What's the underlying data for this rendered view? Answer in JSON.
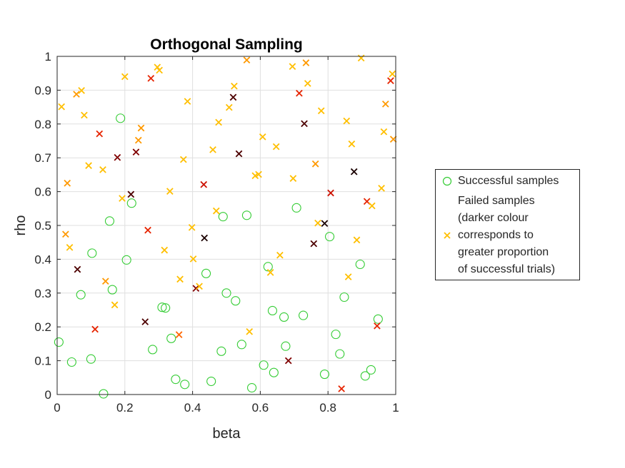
{
  "chart_data": {
    "type": "scatter",
    "title": "Orthogonal Sampling",
    "xlabel": "beta",
    "ylabel": "rho",
    "xlim": [
      0,
      1
    ],
    "ylim": [
      0,
      1
    ],
    "xticks": [
      "0",
      "0.2",
      "0.4",
      "0.6",
      "0.8",
      "1"
    ],
    "yticks": [
      "0",
      "0.1",
      "0.2",
      "0.3",
      "0.4",
      "0.5",
      "0.6",
      "0.7",
      "0.8",
      "0.9",
      "1"
    ],
    "grid": true,
    "legend_position": "right",
    "colors": {
      "success": "#33cc33",
      "fail_bright": "#ffbf00",
      "fail_orange": "#ff9900",
      "fail_red": "#e62400",
      "fail_dark": "#4d0000"
    },
    "series": [
      {
        "name": "Successful samples",
        "marker": "circle",
        "color": "#33cc33",
        "points": [
          [
            0.005,
            0.155
          ],
          [
            0.043,
            0.096
          ],
          [
            0.07,
            0.295
          ],
          [
            0.1,
            0.105
          ],
          [
            0.103,
            0.418
          ],
          [
            0.137,
            0.002
          ],
          [
            0.155,
            0.513
          ],
          [
            0.163,
            0.31
          ],
          [
            0.187,
            0.817
          ],
          [
            0.205,
            0.398
          ],
          [
            0.22,
            0.566
          ],
          [
            0.282,
            0.133
          ],
          [
            0.31,
            0.258
          ],
          [
            0.32,
            0.256
          ],
          [
            0.337,
            0.166
          ],
          [
            0.35,
            0.045
          ],
          [
            0.377,
            0.03
          ],
          [
            0.44,
            0.358
          ],
          [
            0.455,
            0.039
          ],
          [
            0.485,
            0.128
          ],
          [
            0.49,
            0.526
          ],
          [
            0.5,
            0.3
          ],
          [
            0.527,
            0.277
          ],
          [
            0.545,
            0.148
          ],
          [
            0.56,
            0.53
          ],
          [
            0.575,
            0.02
          ],
          [
            0.61,
            0.087
          ],
          [
            0.623,
            0.378
          ],
          [
            0.636,
            0.248
          ],
          [
            0.64,
            0.065
          ],
          [
            0.67,
            0.229
          ],
          [
            0.675,
            0.143
          ],
          [
            0.707,
            0.552
          ],
          [
            0.727,
            0.234
          ],
          [
            0.79,
            0.06
          ],
          [
            0.805,
            0.467
          ],
          [
            0.823,
            0.178
          ],
          [
            0.835,
            0.12
          ],
          [
            0.848,
            0.288
          ],
          [
            0.895,
            0.385
          ],
          [
            0.91,
            0.055
          ],
          [
            0.927,
            0.073
          ],
          [
            0.948,
            0.223
          ]
        ]
      },
      {
        "name": "Failed samples (darker colour corresponds to greater proportion of successful trials)",
        "marker": "x",
        "points": [
          {
            "x": 0.013,
            "y": 0.851,
            "c": "#ffbf00"
          },
          {
            "x": 0.025,
            "y": 0.474,
            "c": "#ff9900"
          },
          {
            "x": 0.03,
            "y": 0.625,
            "c": "#ff9900"
          },
          {
            "x": 0.037,
            "y": 0.435,
            "c": "#ffbf00"
          },
          {
            "x": 0.057,
            "y": 0.888,
            "c": "#ff9900"
          },
          {
            "x": 0.06,
            "y": 0.37,
            "c": "#4d0000"
          },
          {
            "x": 0.072,
            "y": 0.899,
            "c": "#ffbf00"
          },
          {
            "x": 0.08,
            "y": 0.826,
            "c": "#ffbf00"
          },
          {
            "x": 0.093,
            "y": 0.677,
            "c": "#ffbf00"
          },
          {
            "x": 0.112,
            "y": 0.193,
            "c": "#e62400"
          },
          {
            "x": 0.125,
            "y": 0.771,
            "c": "#e62400"
          },
          {
            "x": 0.135,
            "y": 0.665,
            "c": "#ffbf00"
          },
          {
            "x": 0.143,
            "y": 0.335,
            "c": "#ff9900"
          },
          {
            "x": 0.17,
            "y": 0.265,
            "c": "#ffbf00"
          },
          {
            "x": 0.178,
            "y": 0.701,
            "c": "#800000"
          },
          {
            "x": 0.192,
            "y": 0.58,
            "c": "#ffbf00"
          },
          {
            "x": 0.2,
            "y": 0.94,
            "c": "#ffbf00"
          },
          {
            "x": 0.218,
            "y": 0.592,
            "c": "#4d0000"
          },
          {
            "x": 0.233,
            "y": 0.717,
            "c": "#800000"
          },
          {
            "x": 0.24,
            "y": 0.752,
            "c": "#ff9900"
          },
          {
            "x": 0.248,
            "y": 0.788,
            "c": "#ff9900"
          },
          {
            "x": 0.26,
            "y": 0.215,
            "c": "#4d0000"
          },
          {
            "x": 0.268,
            "y": 0.486,
            "c": "#e62400"
          },
          {
            "x": 0.277,
            "y": 0.935,
            "c": "#e62400"
          },
          {
            "x": 0.296,
            "y": 0.968,
            "c": "#ffbf00"
          },
          {
            "x": 0.302,
            "y": 0.959,
            "c": "#ffbf00"
          },
          {
            "x": 0.317,
            "y": 0.427,
            "c": "#ffbf00"
          },
          {
            "x": 0.333,
            "y": 0.601,
            "c": "#ffbf00"
          },
          {
            "x": 0.36,
            "y": 0.177,
            "c": "#ff6600"
          },
          {
            "x": 0.363,
            "y": 0.341,
            "c": "#ffbf00"
          },
          {
            "x": 0.373,
            "y": 0.695,
            "c": "#ffbf00"
          },
          {
            "x": 0.385,
            "y": 0.867,
            "c": "#ffbf00"
          },
          {
            "x": 0.398,
            "y": 0.494,
            "c": "#ffbf00"
          },
          {
            "x": 0.402,
            "y": 0.401,
            "c": "#ffbf00"
          },
          {
            "x": 0.41,
            "y": 0.314,
            "c": "#800000"
          },
          {
            "x": 0.42,
            "y": 0.32,
            "c": "#ffbf00"
          },
          {
            "x": 0.433,
            "y": 0.621,
            "c": "#cc1100"
          },
          {
            "x": 0.435,
            "y": 0.463,
            "c": "#1a0000"
          },
          {
            "x": 0.46,
            "y": 0.724,
            "c": "#ffbf00"
          },
          {
            "x": 0.47,
            "y": 0.543,
            "c": "#ffbf00"
          },
          {
            "x": 0.477,
            "y": 0.805,
            "c": "#ffbf00"
          },
          {
            "x": 0.508,
            "y": 0.849,
            "c": "#ffbf00"
          },
          {
            "x": 0.52,
            "y": 0.879,
            "c": "#4d0000"
          },
          {
            "x": 0.523,
            "y": 0.912,
            "c": "#ffbf00"
          },
          {
            "x": 0.537,
            "y": 0.712,
            "c": "#4d0000"
          },
          {
            "x": 0.56,
            "y": 0.989,
            "c": "#ff9900"
          },
          {
            "x": 0.568,
            "y": 0.186,
            "c": "#ffbf00"
          },
          {
            "x": 0.585,
            "y": 0.647,
            "c": "#ffbf00"
          },
          {
            "x": 0.595,
            "y": 0.651,
            "c": "#ffbf00"
          },
          {
            "x": 0.607,
            "y": 0.762,
            "c": "#ffbf00"
          },
          {
            "x": 0.63,
            "y": 0.361,
            "c": "#ffbf00"
          },
          {
            "x": 0.647,
            "y": 0.733,
            "c": "#ffbf00"
          },
          {
            "x": 0.658,
            "y": 0.412,
            "c": "#ffbf00"
          },
          {
            "x": 0.683,
            "y": 0.1,
            "c": "#800000"
          },
          {
            "x": 0.695,
            "y": 0.97,
            "c": "#ffbf00"
          },
          {
            "x": 0.697,
            "y": 0.639,
            "c": "#ffbf00"
          },
          {
            "x": 0.715,
            "y": 0.891,
            "c": "#e62400"
          },
          {
            "x": 0.73,
            "y": 0.801,
            "c": "#4d0000"
          },
          {
            "x": 0.735,
            "y": 0.981,
            "c": "#ff9900"
          },
          {
            "x": 0.74,
            "y": 0.92,
            "c": "#ffbf00"
          },
          {
            "x": 0.758,
            "y": 0.446,
            "c": "#4d0000"
          },
          {
            "x": 0.763,
            "y": 0.682,
            "c": "#ff9900"
          },
          {
            "x": 0.77,
            "y": 0.507,
            "c": "#ffbf00"
          },
          {
            "x": 0.78,
            "y": 0.839,
            "c": "#ffbf00"
          },
          {
            "x": 0.79,
            "y": 0.506,
            "c": "#1a0000"
          },
          {
            "x": 0.808,
            "y": 0.596,
            "c": "#cc1100"
          },
          {
            "x": 0.84,
            "y": 0.017,
            "c": "#e62400"
          },
          {
            "x": 0.855,
            "y": 0.809,
            "c": "#ffbf00"
          },
          {
            "x": 0.86,
            "y": 0.348,
            "c": "#ffbf00"
          },
          {
            "x": 0.87,
            "y": 0.741,
            "c": "#ffbf00"
          },
          {
            "x": 0.877,
            "y": 0.659,
            "c": "#1a0000"
          },
          {
            "x": 0.885,
            "y": 0.457,
            "c": "#ffbf00"
          },
          {
            "x": 0.898,
            "y": 0.995,
            "c": "#ffbf00"
          },
          {
            "x": 0.915,
            "y": 0.571,
            "c": "#e62400"
          },
          {
            "x": 0.93,
            "y": 0.558,
            "c": "#ffbf00"
          },
          {
            "x": 0.945,
            "y": 0.203,
            "c": "#e62400"
          },
          {
            "x": 0.958,
            "y": 0.61,
            "c": "#ffbf00"
          },
          {
            "x": 0.965,
            "y": 0.777,
            "c": "#ffbf00"
          },
          {
            "x": 0.97,
            "y": 0.859,
            "c": "#ff9900"
          },
          {
            "x": 0.985,
            "y": 0.928,
            "c": "#e62400"
          },
          {
            "x": 0.99,
            "y": 0.948,
            "c": "#ffbf00"
          },
          {
            "x": 0.993,
            "y": 0.755,
            "c": "#ff9900"
          }
        ]
      }
    ]
  },
  "legend": {
    "success_label": "Successful samples",
    "fail_label": "Failed samples\n(darker colour\ncorresponds to\ngreater proportion\nof successful trials)",
    "fail_color": "#ffbf00"
  }
}
